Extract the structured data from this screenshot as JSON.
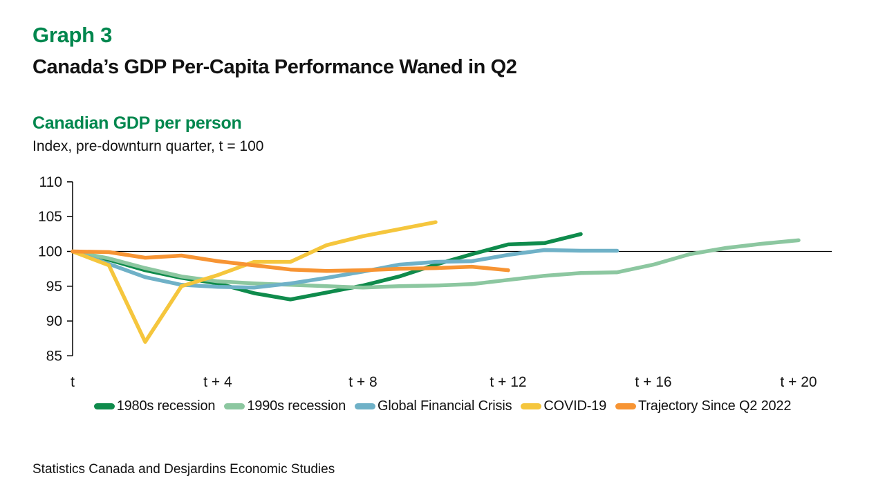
{
  "header": {
    "kicker": "Graph 3",
    "title": "Canada’s GDP Per-Capita Performance Waned in Q2"
  },
  "footer": {
    "source": "Statistics Canada and Desjardins Economic Studies"
  },
  "colors": {
    "brand_green": "#00874E",
    "text": "#161616",
    "axis": "#000000"
  },
  "chart_data": {
    "type": "line",
    "title": "Canadian GDP per person",
    "subtitle": "Index, pre-downturn quarter, t = 100",
    "x_unit": "quarters after pre-downturn quarter t",
    "x_ticks": [
      {
        "q": 0,
        "label": "t"
      },
      {
        "q": 4,
        "label": "t + 4"
      },
      {
        "q": 8,
        "label": "t + 8"
      },
      {
        "q": 12,
        "label": "t + 12"
      },
      {
        "q": 16,
        "label": "t + 16"
      },
      {
        "q": 20,
        "label": "t + 20"
      }
    ],
    "y_ticks": [
      110,
      105,
      100,
      95,
      90,
      85
    ],
    "ylim": [
      85,
      110
    ],
    "xlim_quarters": [
      0,
      20
    ],
    "baseline": 100,
    "grid": "none",
    "legend_position": "bottom",
    "series": [
      {
        "name": "1980s recession",
        "color": "#0F8B4C",
        "start_q": 0,
        "values": [
          100,
          98.8,
          97.3,
          96.2,
          95.4,
          94.0,
          93.1,
          94.1,
          95.1,
          96.4,
          98.1,
          99.6,
          101.0,
          101.2,
          102.5
        ]
      },
      {
        "name": "1990s recession",
        "color": "#8CC7A0",
        "start_q": 0,
        "values": [
          100,
          99.0,
          97.6,
          96.4,
          95.7,
          95.4,
          95.2,
          95.0,
          94.8,
          95.0,
          95.1,
          95.3,
          95.9,
          96.5,
          96.9,
          97.0,
          98.1,
          99.6,
          100.5,
          101.1,
          101.6
        ]
      },
      {
        "name": "Global Financial Crisis",
        "color": "#6FB1C7",
        "start_q": 0,
        "values": [
          100,
          98.2,
          96.3,
          95.2,
          94.9,
          94.8,
          95.4,
          96.2,
          97.1,
          98.1,
          98.5,
          98.6,
          99.5,
          100.2,
          100.1,
          100.1
        ]
      },
      {
        "name": "COVID-19",
        "color": "#F5C63D",
        "start_q": 0,
        "values": [
          100,
          98.0,
          87.0,
          95.0,
          96.6,
          98.5,
          98.5,
          100.9,
          102.2,
          103.2,
          104.2
        ]
      },
      {
        "name": "Trajectory Since Q2 2022",
        "color": "#F79433",
        "start_q": 0,
        "values": [
          100,
          99.9,
          99.1,
          99.4,
          98.6,
          98.0,
          97.4,
          97.2,
          97.3,
          97.5,
          97.6,
          97.8,
          97.3
        ]
      }
    ]
  }
}
